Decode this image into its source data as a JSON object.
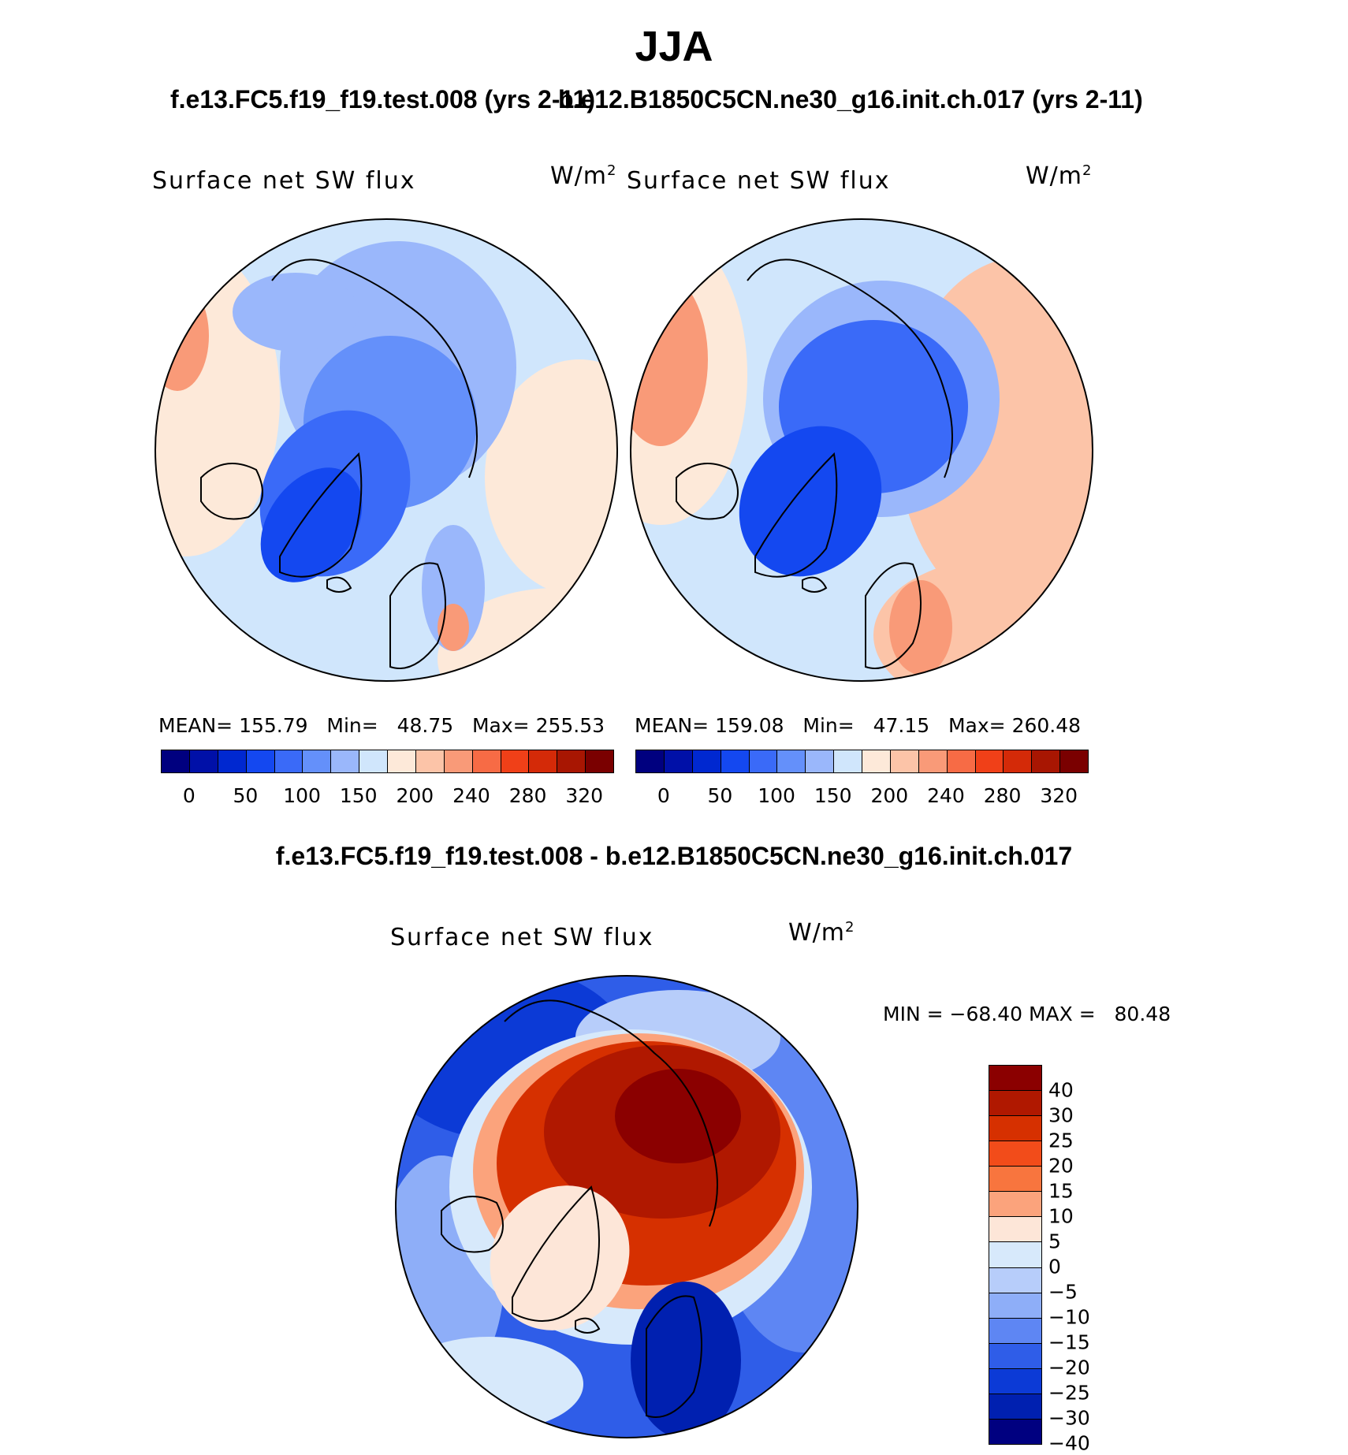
{
  "title": "JJA",
  "case1_title": "f.e13.FC5.f19_f19.test.008 (yrs 2-11)",
  "case2_title": "b.e12.B1850C5CN.ne30_g16.init.ch.017 (yrs 2-11)",
  "diff_title": "f.e13.FC5.f19_f19.test.008 - b.e12.B1850C5CN.ne30_g16.init.ch.017",
  "panels": [
    {
      "label": "Surface net SW flux",
      "units": "W/m",
      "units_sup": "2",
      "mean_label": "MEAN=",
      "mean": "155.79",
      "min_label": "Min=",
      "min": "48.75",
      "max_label": "Max=",
      "max": "255.53"
    },
    {
      "label": "Surface net SW flux",
      "units": "W/m",
      "units_sup": "2",
      "mean_label": "MEAN=",
      "mean": "159.08",
      "min_label": "Min=",
      "min": "47.15",
      "max_label": "Max=",
      "max": "260.48"
    }
  ],
  "diff_panel": {
    "label": "Surface net SW flux",
    "units": "W/m",
    "units_sup": "2",
    "min_label": "MIN =",
    "min": "−68.40",
    "max_label": "MAX =",
    "max": "80.48"
  },
  "colorbar_field": {
    "colors": [
      "#00007f",
      "#0010a8",
      "#0028d0",
      "#1448f0",
      "#3a6af8",
      "#6490fa",
      "#9ab7fb",
      "#d0e6fc",
      "#fde9d9",
      "#fcc4a8",
      "#f99a78",
      "#f76b45",
      "#f04018",
      "#d42a08",
      "#a81602",
      "#7a0000"
    ],
    "labels": [
      "0",
      "50",
      "100",
      "150",
      "200",
      "240",
      "280",
      "320"
    ]
  },
  "colorbar_diff": {
    "colors": [
      "#8b0000",
      "#b01800",
      "#d63000",
      "#f24c1a",
      "#f8753e",
      "#fba37c",
      "#fde6d8",
      "#d7e9fb",
      "#b7cdfa",
      "#8eaef8",
      "#5e86f3",
      "#2f5de8",
      "#0c3ad6",
      "#0020b0",
      "#000080"
    ],
    "labels": [
      "40",
      "30",
      "25",
      "20",
      "15",
      "10",
      "5",
      "0",
      "−5",
      "−10",
      "−15",
      "−20",
      "−25",
      "−30",
      "−40"
    ]
  }
}
